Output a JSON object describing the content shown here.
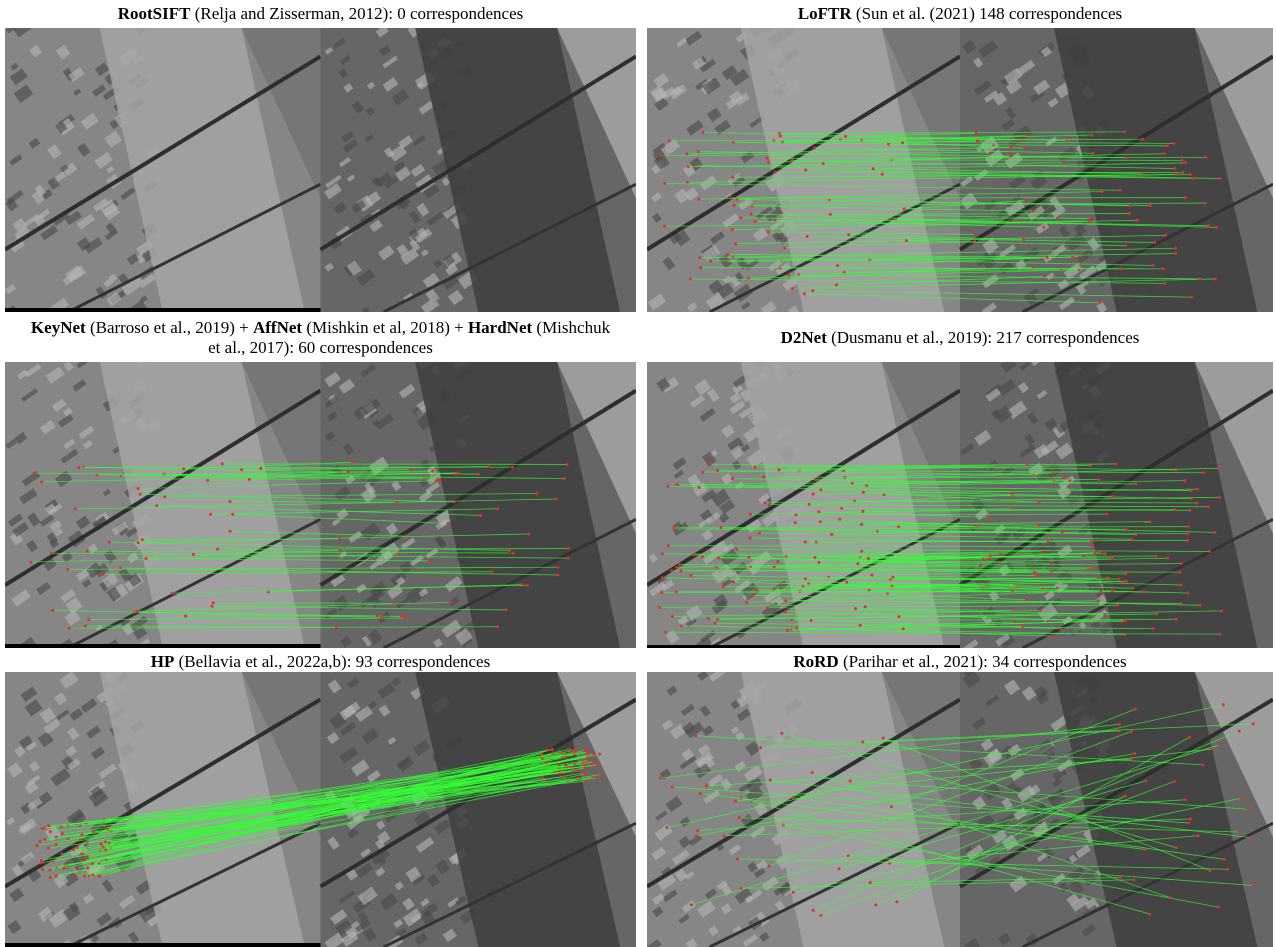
{
  "panels": [
    {
      "caption": [
        {
          "text": "RootSIFT",
          "bold": true
        },
        {
          "text": " (Relja and Zisserman, 2012): 0 correspondences",
          "bold": false
        }
      ]
    },
    {
      "caption": [
        {
          "text": "LoFTR",
          "bold": true
        },
        {
          "text": " (Sun et al. (2021) 148 correspondences",
          "bold": false
        }
      ]
    },
    {
      "caption": [
        {
          "text": "KeyNet",
          "bold": true
        },
        {
          "text": " (Barroso et al., 2019) + ",
          "bold": false
        },
        {
          "text": "AffNet",
          "bold": true
        },
        {
          "text": " (Mishkin et al, 2018) + ",
          "bold": false
        },
        {
          "text": "HardNet",
          "bold": true
        },
        {
          "text": " (Mishchuk et al., 2017): 60 correspondences",
          "bold": false
        }
      ]
    },
    {
      "caption": [
        {
          "text": "D2Net",
          "bold": true
        },
        {
          "text": " (Dusmanu et al., 2019): 217 correspondences",
          "bold": false
        }
      ]
    },
    {
      "caption": [
        {
          "text": "HP",
          "bold": true
        },
        {
          "text": " (Bellavia et al., 2022a,b): 93 correspondences",
          "bold": false
        }
      ]
    },
    {
      "caption": [
        {
          "text": "RoRD",
          "bold": true
        },
        {
          "text": " (Parihar et al., 2021): 34 correspondences",
          "bold": false
        }
      ]
    }
  ]
}
